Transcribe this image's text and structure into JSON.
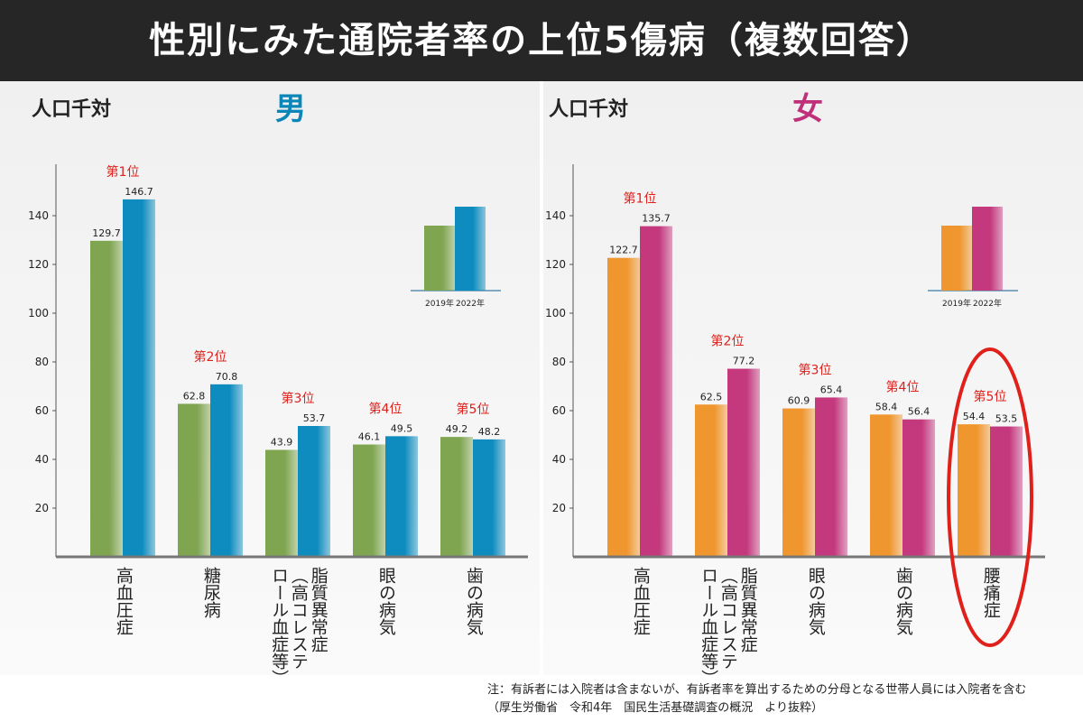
{
  "title": "性別にみた通院者率の上位5傷病（複数回答）",
  "note": "注：有訴者には入院者は含まないが、有訴者率を算出するための分母となる世帯人員には入院者を含む",
  "source": "（厚生労働省　令和4年　国民生活基礎調査の概況　より抜粋）",
  "chart_data": [
    {
      "type": "bar",
      "title": "男",
      "title_color": "#0a87b8",
      "ylabel": "人口千対",
      "categories": [
        "高血圧症",
        "糖尿病",
        "脂質異常症（高コレステロール血症等）",
        "眼の病気",
        "歯の病気"
      ],
      "ranks": [
        "第1位",
        "第2位",
        "第3位",
        "第4位",
        "第5位"
      ],
      "series": [
        {
          "name": "2019年",
          "color": "#7fa551",
          "values": [
            129.7,
            62.8,
            43.9,
            46.1,
            49.2
          ]
        },
        {
          "name": "2022年",
          "color": "#0e8cbf",
          "values": [
            146.7,
            70.8,
            53.7,
            49.5,
            48.2
          ]
        }
      ],
      "ylim": [
        0,
        160
      ],
      "yticks": [
        20,
        40,
        60,
        80,
        100,
        120,
        140
      ]
    },
    {
      "type": "bar",
      "title": "女",
      "title_color": "#c0307a",
      "ylabel": "人口千対",
      "categories": [
        "高血圧症",
        "脂質異常症（高コレステロール血症等）",
        "眼の病気",
        "歯の病気",
        "腰痛症"
      ],
      "ranks": [
        "第1位",
        "第2位",
        "第3位",
        "第4位",
        "第5位"
      ],
      "series": [
        {
          "name": "2019年",
          "color": "#f0962e",
          "values": [
            122.7,
            62.5,
            60.9,
            58.4,
            54.4
          ]
        },
        {
          "name": "2022年",
          "color": "#c4397e",
          "values": [
            135.7,
            77.2,
            65.4,
            56.4,
            53.5
          ]
        }
      ],
      "ylim": [
        0,
        160
      ],
      "yticks": [
        20,
        40,
        60,
        80,
        100,
        120,
        140
      ],
      "highlight": 4
    }
  ]
}
